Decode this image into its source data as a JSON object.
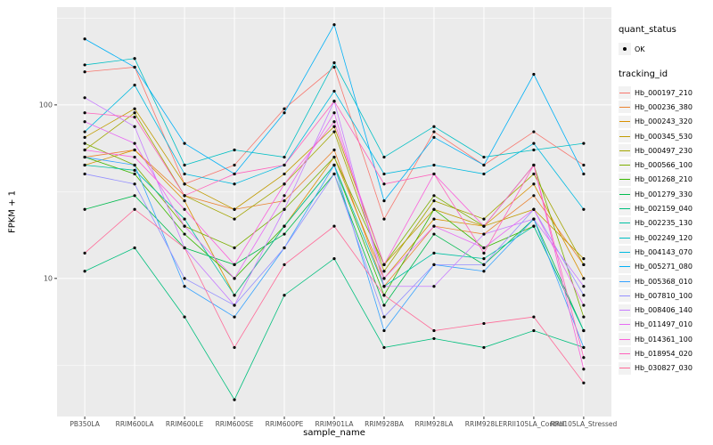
{
  "axes": {
    "x_label": "sample_name",
    "y_label": "FPKM + 1",
    "y_ticks": [
      "100",
      "10"
    ]
  },
  "legend": {
    "quant_status_title": "quant_status",
    "quant_status_items": [
      {
        "label": "OK"
      }
    ],
    "tracking_id_title": "tracking_id"
  },
  "chart_data": {
    "type": "line",
    "x_scale": "categorical",
    "y_scale": "log10",
    "title": "",
    "xlabel": "sample_name",
    "ylabel": "FPKM + 1",
    "ylim": [
      1.6,
      366
    ],
    "y_major_gridlines": [
      100,
      10
    ],
    "y_minor_gridlines": [
      316.2,
      31.62,
      3.162
    ],
    "panel_bg": "#EBEBEB",
    "grid_color": "#FFFFFF",
    "point_color": "#000000",
    "tick_label_color": "#4D4D4D",
    "x": [
      "PB350LA",
      "RRIM600LA",
      "RRIM600LE",
      "RRIM600SE",
      "RRIM600PE",
      "RRIM901LA",
      "RRIM928BA",
      "RRIM928LA",
      "RRIM928LE",
      "RRII105LA_Control",
      "RRII105LA_Stressed"
    ],
    "series": [
      {
        "name": "Hb_000197_210",
        "color": "#F8766D",
        "values": [
          155,
          165,
          35,
          45,
          95,
          165,
          22,
          70,
          45,
          70,
          45
        ]
      },
      {
        "name": "Hb_000236_380",
        "color": "#EA8331",
        "values": [
          50,
          55,
          30,
          25,
          28,
          55,
          9,
          20,
          18,
          30,
          12
        ]
      },
      {
        "name": "Hb_000243_320",
        "color": "#D89000",
        "values": [
          45,
          55,
          28,
          8,
          20,
          50,
          10,
          22,
          20,
          35,
          10
        ]
      },
      {
        "name": "Hb_000345_530",
        "color": "#C09B00",
        "values": [
          65,
          95,
          35,
          25,
          40,
          75,
          12,
          25,
          20,
          25,
          13
        ]
      },
      {
        "name": "Hb_000497_230",
        "color": "#A3A500",
        "values": [
          55,
          90,
          30,
          22,
          35,
          70,
          11,
          28,
          22,
          40,
          12
        ]
      },
      {
        "name": "Hb_000566_100",
        "color": "#7CAE00",
        "values": [
          60,
          45,
          20,
          15,
          25,
          50,
          12,
          30,
          20,
          45,
          6
        ]
      },
      {
        "name": "Hb_001268_210",
        "color": "#39B600",
        "values": [
          50,
          40,
          18,
          10,
          20,
          45,
          8,
          25,
          15,
          20,
          5
        ]
      },
      {
        "name": "Hb_001279_330",
        "color": "#00BB4E",
        "values": [
          25,
          30,
          15,
          12,
          18,
          40,
          7,
          18,
          12,
          22,
          5
        ]
      },
      {
        "name": "Hb_002159_040",
        "color": "#00BF7D",
        "values": [
          11,
          15,
          6,
          2,
          8,
          13,
          4,
          4.5,
          4,
          5,
          4
        ]
      },
      {
        "name": "Hb_002235_130",
        "color": "#00C1A3",
        "values": [
          45,
          42,
          22,
          8,
          20,
          45,
          9,
          14,
          13,
          20,
          5
        ]
      },
      {
        "name": "Hb_002249_120",
        "color": "#00BFC4",
        "values": [
          170,
          185,
          45,
          55,
          50,
          175,
          50,
          75,
          50,
          55,
          60
        ]
      },
      {
        "name": "Hb_004143_070",
        "color": "#00BAE0",
        "values": [
          70,
          130,
          40,
          35,
          45,
          120,
          40,
          45,
          40,
          60,
          25
        ]
      },
      {
        "name": "Hb_005271_080",
        "color": "#00B0F6",
        "values": [
          240,
          165,
          60,
          40,
          90,
          290,
          28,
          65,
          45,
          150,
          40
        ]
      },
      {
        "name": "Hb_005368_010",
        "color": "#35A2FF",
        "values": [
          50,
          45,
          9,
          6,
          15,
          45,
          5,
          12,
          11,
          22,
          4
        ]
      },
      {
        "name": "Hb_007810_100",
        "color": "#9590FF",
        "values": [
          40,
          35,
          10,
          7,
          15,
          40,
          6,
          12,
          12,
          25,
          8
        ]
      },
      {
        "name": "Hb_008406_140",
        "color": "#C77CFF",
        "values": [
          110,
          75,
          15,
          7,
          25,
          105,
          9,
          9,
          18,
          22,
          9
        ]
      },
      {
        "name": "Hb_011497_010",
        "color": "#E76BF3",
        "values": [
          80,
          60,
          20,
          10,
          30,
          90,
          10,
          20,
          15,
          25,
          7
        ]
      },
      {
        "name": "Hb_014361_100",
        "color": "#FA62DB",
        "values": [
          55,
          50,
          25,
          12,
          35,
          80,
          12,
          40,
          20,
          45,
          3
        ]
      },
      {
        "name": "Hb_018954_020",
        "color": "#FF62BC",
        "values": [
          90,
          85,
          30,
          40,
          45,
          105,
          35,
          40,
          14,
          45,
          3.5
        ]
      },
      {
        "name": "Hb_030827_030",
        "color": "#FF6A98",
        "values": [
          14,
          25,
          15,
          4,
          12,
          20,
          8,
          5,
          5.5,
          6,
          2.5
        ]
      }
    ]
  }
}
